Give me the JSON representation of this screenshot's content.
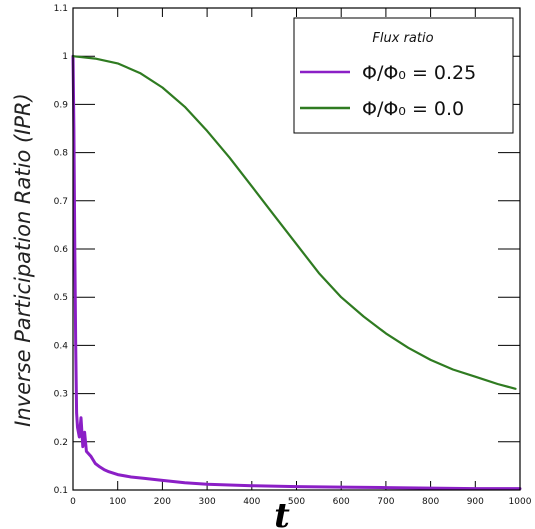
{
  "chart_data": {
    "type": "line",
    "title": "",
    "xlabel": "t",
    "ylabel": "Inverse Participation Ratio (IPR)",
    "xlim": [
      0,
      1000
    ],
    "ylim": [
      0.1,
      1.1
    ],
    "x_ticks": [
      0,
      100,
      200,
      300,
      400,
      500,
      600,
      700,
      800,
      900,
      1000
    ],
    "y_ticks": [
      0.1,
      0.2,
      0.3,
      0.4,
      0.5,
      0.6,
      0.7,
      0.8,
      0.9,
      1,
      1.1
    ],
    "grid": false,
    "legend": {
      "title": "Flux ratio",
      "position": "top-right"
    },
    "series": [
      {
        "name": "Φ/Φ₀ = 0.25",
        "color": "#8b1fc6",
        "x": [
          0,
          2,
          4,
          6,
          8,
          10,
          14,
          18,
          22,
          26,
          30,
          40,
          50,
          60,
          70,
          80,
          100,
          130,
          160,
          200,
          250,
          300,
          400,
          500,
          600,
          700,
          800,
          900,
          1000
        ],
        "y": [
          1.0,
          0.85,
          0.6,
          0.4,
          0.26,
          0.23,
          0.21,
          0.25,
          0.19,
          0.22,
          0.18,
          0.17,
          0.155,
          0.148,
          0.142,
          0.138,
          0.132,
          0.127,
          0.124,
          0.12,
          0.115,
          0.112,
          0.109,
          0.107,
          0.106,
          0.105,
          0.104,
          0.103,
          0.103
        ]
      },
      {
        "name": "Φ/Φ₀ = 0.0",
        "color": "#2f7b21",
        "x": [
          0,
          50,
          100,
          150,
          200,
          250,
          300,
          350,
          400,
          450,
          500,
          550,
          600,
          650,
          700,
          750,
          800,
          850,
          900,
          950,
          990
        ],
        "y": [
          1.0,
          0.995,
          0.985,
          0.965,
          0.935,
          0.895,
          0.845,
          0.79,
          0.73,
          0.67,
          0.61,
          0.55,
          0.5,
          0.46,
          0.425,
          0.395,
          0.37,
          0.35,
          0.335,
          0.32,
          0.31
        ]
      }
    ]
  }
}
